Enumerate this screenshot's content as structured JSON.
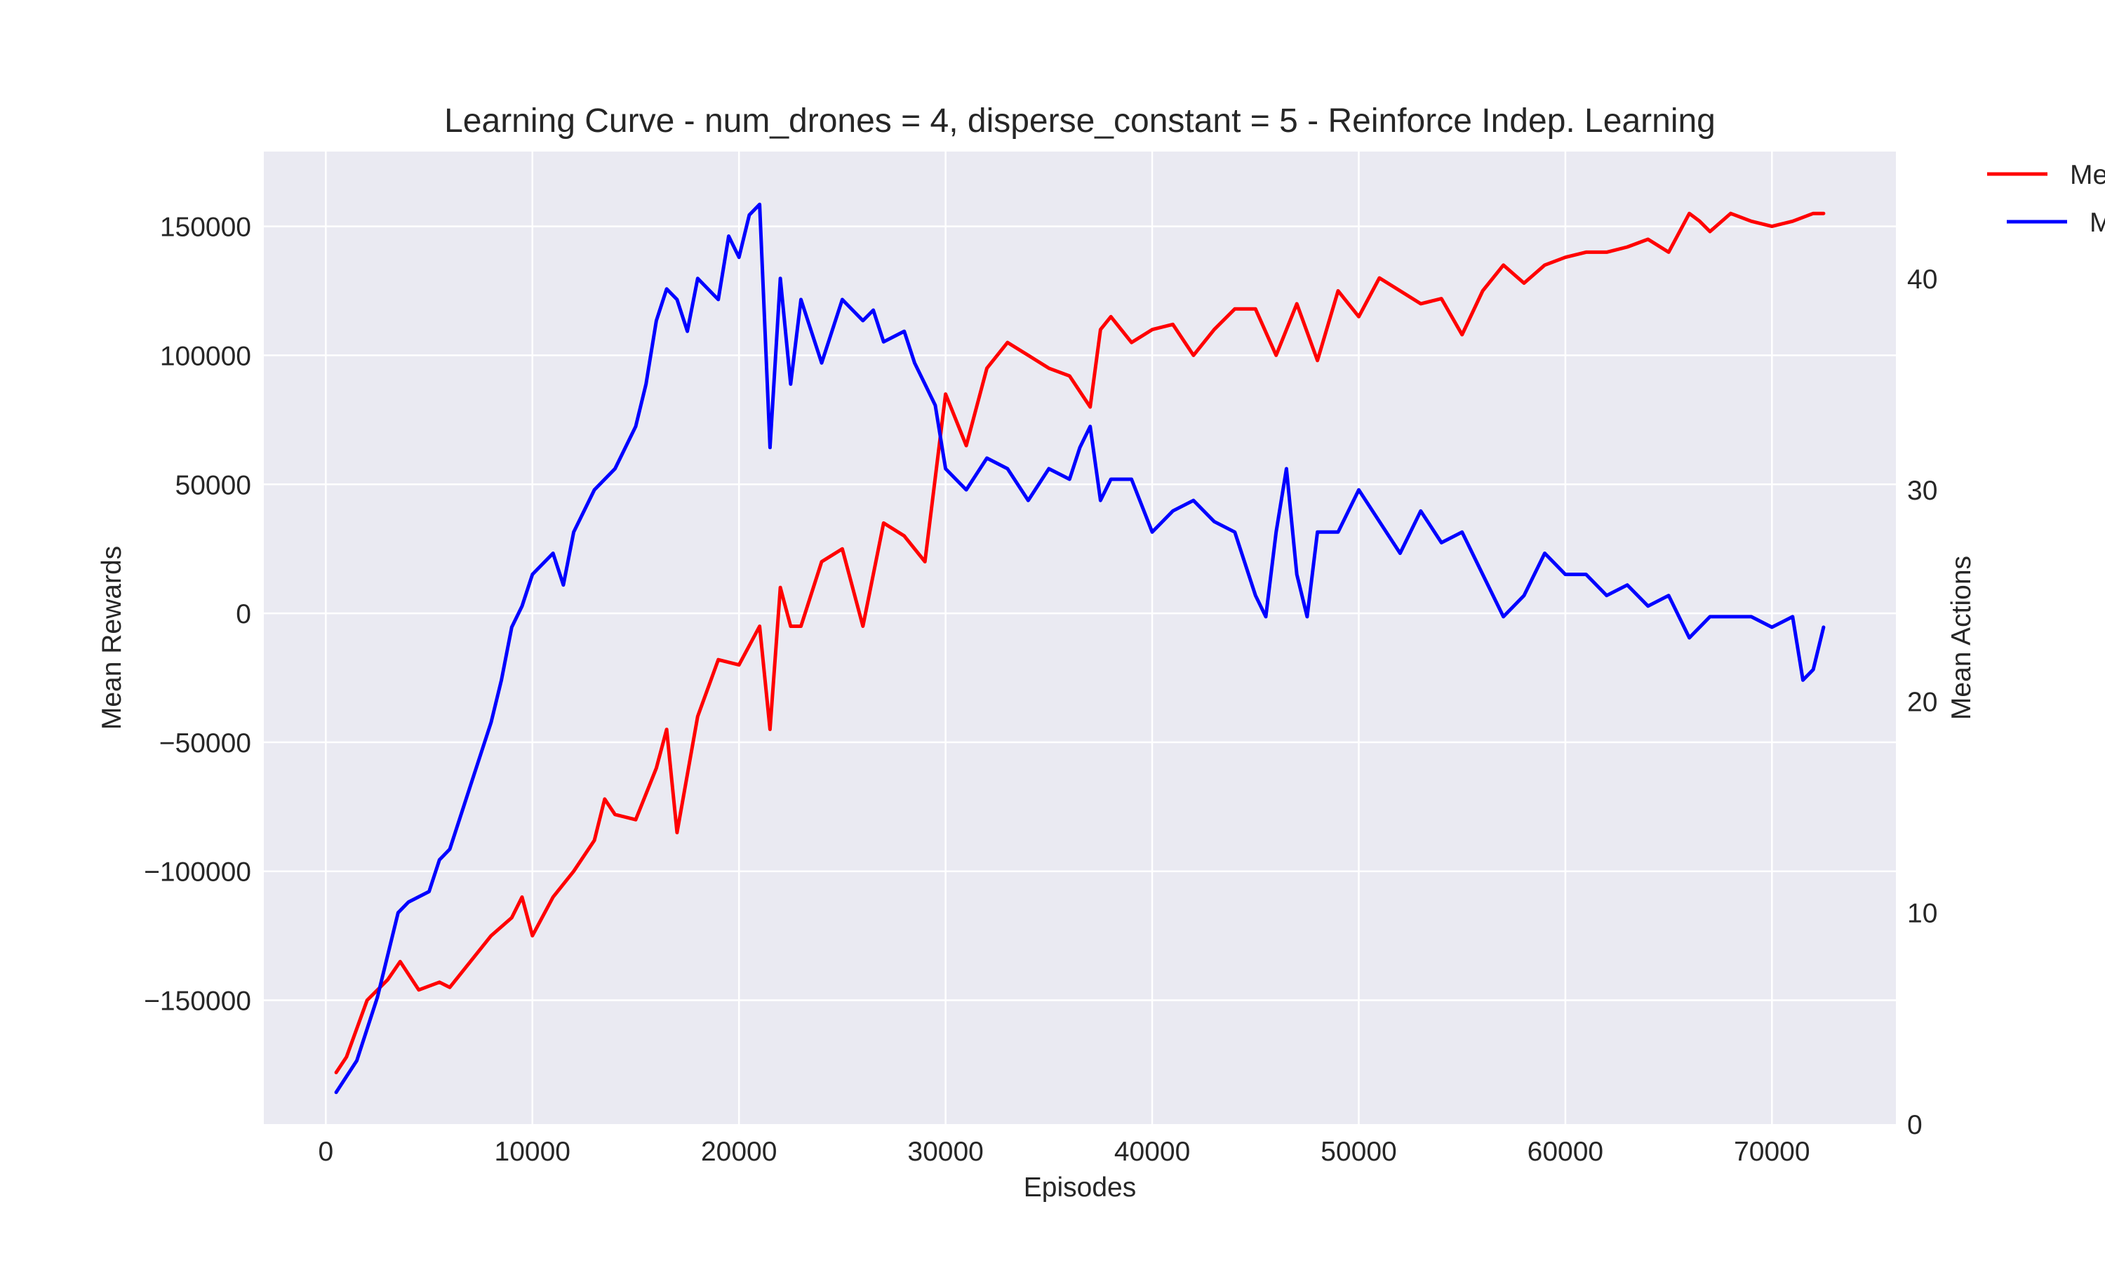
{
  "chart_data": {
    "type": "line",
    "title": "Learning Curve - num_drones = 4, disperse_constant = 5 - Reinforce Indep. Learning",
    "xlabel": "Episodes",
    "ylabel_left": "Mean Rewards",
    "ylabel_right": "Mean Actions",
    "xlim": [
      -3000,
      76000
    ],
    "ylim_left": [
      -198000,
      179000
    ],
    "ylim_right": [
      0,
      46
    ],
    "x_ticks": [
      0,
      10000,
      20000,
      30000,
      40000,
      50000,
      60000,
      70000
    ],
    "y_ticks_left": [
      150000,
      100000,
      50000,
      0,
      -50000,
      -100000,
      -150000
    ],
    "y_ticks_left_labels": [
      "150000",
      "100000",
      "50000",
      "0",
      "−50000",
      "−100000",
      "−150000"
    ],
    "y_ticks_right": [
      40,
      30,
      20,
      10,
      0
    ],
    "grid": true,
    "legend_position": "top-right, outside plot (clipped)",
    "legend": [
      "Me",
      "M"
    ],
    "colors": {
      "background": "#EAEAF2",
      "grid": "#FFFFFF",
      "rewards": "#FF0000",
      "actions": "#0000FF"
    },
    "series": [
      {
        "axis": "left",
        "color": "#FF0000",
        "x": [
          500,
          1000,
          2000,
          3000,
          3600,
          4500,
          5500,
          6000,
          7000,
          8000,
          9000,
          9500,
          10000,
          11000,
          12000,
          13000,
          13500,
          14000,
          15000,
          16000,
          16500,
          17000,
          18000,
          19000,
          20000,
          21000,
          21500,
          22000,
          22500,
          23000,
          24000,
          25000,
          26000,
          27000,
          28000,
          29000,
          30000,
          31000,
          32000,
          33000,
          34000,
          35000,
          36000,
          37000,
          37500,
          38000,
          39000,
          40000,
          41000,
          42000,
          43000,
          44000,
          45000,
          46000,
          47000,
          48000,
          49000,
          50000,
          51000,
          52000,
          53000,
          54000,
          55000,
          56000,
          57000,
          58000,
          59000,
          60000,
          61000,
          62000,
          63000,
          64000,
          65000,
          66000,
          66500,
          67000,
          68000,
          69000,
          70000,
          71000,
          72000,
          72500
        ],
        "y": [
          -178000,
          -172000,
          -150000,
          -142000,
          -135000,
          -146000,
          -143000,
          -145000,
          -135000,
          -125000,
          -118000,
          -110000,
          -125000,
          -110000,
          -100000,
          -88000,
          -72000,
          -78000,
          -80000,
          -60000,
          -45000,
          -85000,
          -40000,
          -18000,
          -20000,
          -5000,
          -45000,
          10000,
          -5000,
          -5000,
          20000,
          25000,
          -5000,
          35000,
          30000,
          20000,
          85000,
          65000,
          95000,
          105000,
          100000,
          95000,
          92000,
          80000,
          110000,
          115000,
          105000,
          110000,
          112000,
          100000,
          110000,
          118000,
          118000,
          100000,
          120000,
          98000,
          125000,
          115000,
          130000,
          125000,
          120000,
          122000,
          108000,
          125000,
          135000,
          128000,
          135000,
          138000,
          140000,
          140000,
          142000,
          145000,
          140000,
          155000,
          152000,
          148000,
          155000,
          152000,
          150000,
          152000,
          155000,
          155000
        ]
      },
      {
        "axis": "right",
        "color": "#0000FF",
        "x": [
          500,
          1500,
          2500,
          3500,
          4000,
          5000,
          5500,
          6000,
          7000,
          8000,
          8500,
          9000,
          9500,
          10000,
          11000,
          11500,
          12000,
          13000,
          14000,
          15000,
          15500,
          16000,
          16500,
          17000,
          17500,
          18000,
          19000,
          19500,
          20000,
          20500,
          21000,
          21500,
          22000,
          22500,
          23000,
          24000,
          25000,
          26000,
          26500,
          27000,
          28000,
          28500,
          29000,
          29500,
          30000,
          31000,
          32000,
          33000,
          34000,
          35000,
          36000,
          36500,
          37000,
          37500,
          38000,
          39000,
          40000,
          41000,
          42000,
          43000,
          44000,
          45000,
          45500,
          46000,
          46500,
          47000,
          47500,
          48000,
          49000,
          50000,
          51000,
          52000,
          53000,
          54000,
          55000,
          56000,
          57000,
          58000,
          59000,
          60000,
          61000,
          62000,
          63000,
          64000,
          65000,
          66000,
          67000,
          68000,
          69000,
          70000,
          71000,
          71500,
          72000,
          72500
        ],
        "y": [
          1.5,
          3,
          6,
          10,
          10.5,
          11,
          12.5,
          13,
          16,
          19,
          21,
          23.5,
          24.5,
          26,
          27,
          25.5,
          28,
          30,
          31,
          33,
          35,
          38,
          39.5,
          39,
          37.5,
          40,
          39,
          42,
          41,
          43,
          43.5,
          32,
          40,
          35,
          39,
          36,
          39,
          38,
          38.5,
          37,
          37.5,
          36,
          35,
          34,
          31,
          30,
          31.5,
          31,
          29.5,
          31,
          30.5,
          32,
          33,
          29.5,
          30.5,
          30.5,
          28,
          29,
          29.5,
          28.5,
          28,
          25,
          24,
          28,
          31,
          26,
          24,
          28,
          28,
          30,
          28.5,
          27,
          29,
          27.5,
          28,
          26,
          24,
          25,
          27,
          26,
          26,
          25,
          25.5,
          24.5,
          25,
          23,
          24,
          24,
          24,
          23.5,
          24,
          21,
          21.5,
          23.5
        ]
      }
    ]
  }
}
